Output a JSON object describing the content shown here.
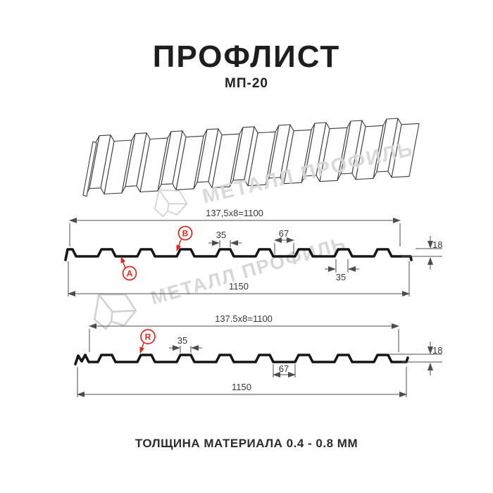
{
  "title": "ПРОФЛИСТ",
  "subtitle": "МП-20",
  "footer": "ТОЛЩИНА МАТЕРИАЛА 0.4 - 0.8 ММ",
  "watermark": {
    "text": "МЕТАЛЛ ПРОФИЛЬ"
  },
  "colors": {
    "accent_red": "#e0241f",
    "drawing_line": "#161616",
    "dimension_line": "#4d4d4d",
    "watermark_gray": "#d7d7d7"
  },
  "profile_top": {
    "pitch_formula": "137,5x8=1100",
    "rib_top_width": "35",
    "flat_width": "67",
    "height": "18",
    "rib_base_width": "35",
    "total_width": "1150",
    "callout_a": "A",
    "callout_b": "B"
  },
  "profile_bottom": {
    "pitch_formula": "137.5x8=1100",
    "rib_top_width": "35",
    "flat_width": "67",
    "height": "18",
    "total_width": "1150",
    "callout_r": "R"
  }
}
